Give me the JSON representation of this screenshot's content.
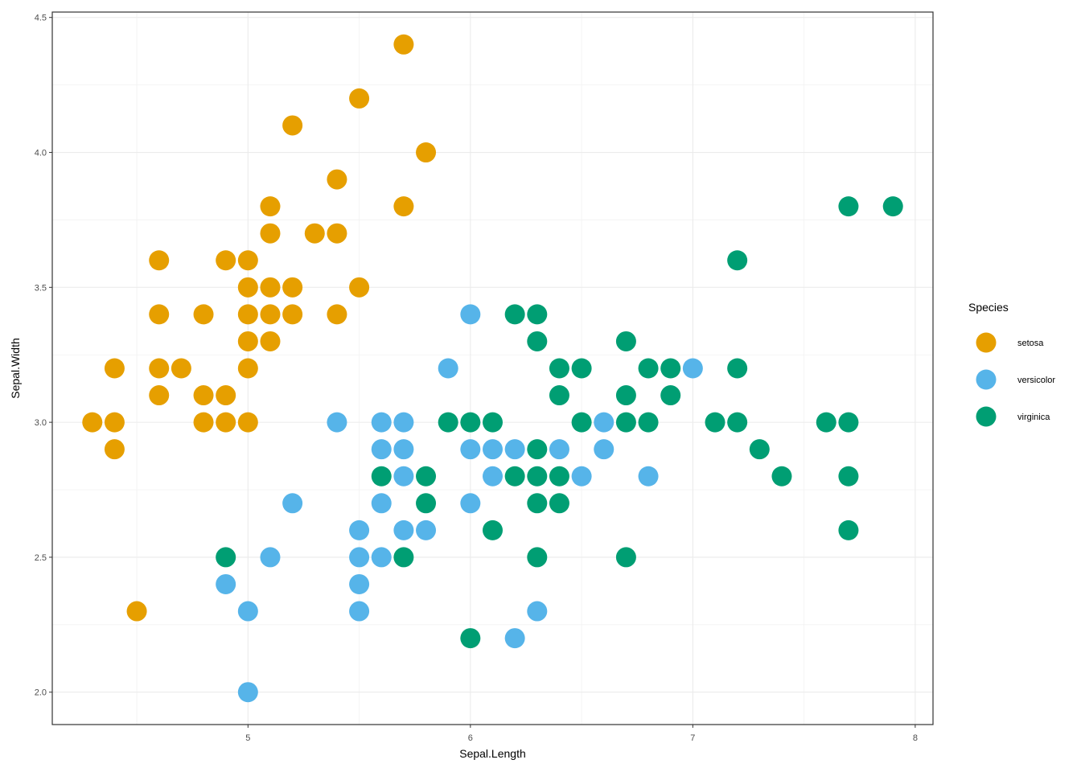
{
  "chart_data": {
    "type": "scatter",
    "title": "",
    "xlabel": "Sepal.Length",
    "ylabel": "Sepal.Width",
    "xlim": [
      4.12,
      8.08
    ],
    "ylim": [
      1.88,
      4.52
    ],
    "xticks": [
      5,
      6,
      7,
      8
    ],
    "xtick_labels": [
      "5",
      "6",
      "7",
      "8"
    ],
    "yticks": [
      2.0,
      2.5,
      3.0,
      3.5,
      4.0,
      4.5
    ],
    "ytick_labels": [
      "2.0",
      "2.5",
      "3.0",
      "3.5",
      "4.0",
      "4.5"
    ],
    "grid": true,
    "legend": {
      "title": "Species",
      "position": "right"
    },
    "series": [
      {
        "name": "setosa",
        "color": "#E69F00",
        "points": [
          [
            5.7,
            4.4
          ],
          [
            5.5,
            4.2
          ],
          [
            5.2,
            4.1
          ],
          [
            5.8,
            4.0
          ],
          [
            5.4,
            3.9
          ],
          [
            5.1,
            3.8
          ],
          [
            5.7,
            3.8
          ],
          [
            5.1,
            3.7
          ],
          [
            5.3,
            3.7
          ],
          [
            5.4,
            3.7
          ],
          [
            4.6,
            3.6
          ],
          [
            4.9,
            3.6
          ],
          [
            5.0,
            3.6
          ],
          [
            5.0,
            3.5
          ],
          [
            5.1,
            3.5
          ],
          [
            5.2,
            3.5
          ],
          [
            5.5,
            3.5
          ],
          [
            4.6,
            3.4
          ],
          [
            4.8,
            3.4
          ],
          [
            5.0,
            3.4
          ],
          [
            5.1,
            3.4
          ],
          [
            5.2,
            3.4
          ],
          [
            5.4,
            3.4
          ],
          [
            5.0,
            3.3
          ],
          [
            5.1,
            3.3
          ],
          [
            4.4,
            3.2
          ],
          [
            4.6,
            3.2
          ],
          [
            4.7,
            3.2
          ],
          [
            5.0,
            3.2
          ],
          [
            4.6,
            3.1
          ],
          [
            4.8,
            3.1
          ],
          [
            4.9,
            3.1
          ],
          [
            4.3,
            3.0
          ],
          [
            4.4,
            3.0
          ],
          [
            4.8,
            3.0
          ],
          [
            4.9,
            3.0
          ],
          [
            5.0,
            3.0
          ],
          [
            4.4,
            2.9
          ],
          [
            4.5,
            2.3
          ]
        ]
      },
      {
        "name": "versicolor",
        "color": "#56B4E9",
        "points": [
          [
            6.0,
            3.4
          ],
          [
            5.9,
            3.2
          ],
          [
            7.0,
            3.2
          ],
          [
            5.4,
            3.0
          ],
          [
            5.6,
            3.0
          ],
          [
            5.7,
            3.0
          ],
          [
            6.6,
            3.0
          ],
          [
            5.6,
            2.9
          ],
          [
            5.7,
            2.9
          ],
          [
            6.0,
            2.9
          ],
          [
            6.1,
            2.9
          ],
          [
            6.2,
            2.9
          ],
          [
            6.4,
            2.9
          ],
          [
            6.6,
            2.9
          ],
          [
            5.7,
            2.8
          ],
          [
            6.1,
            2.8
          ],
          [
            6.5,
            2.8
          ],
          [
            6.8,
            2.8
          ],
          [
            5.2,
            2.7
          ],
          [
            5.6,
            2.7
          ],
          [
            6.0,
            2.7
          ],
          [
            5.5,
            2.6
          ],
          [
            5.7,
            2.6
          ],
          [
            5.8,
            2.6
          ],
          [
            5.1,
            2.5
          ],
          [
            5.5,
            2.5
          ],
          [
            5.6,
            2.5
          ],
          [
            4.9,
            2.4
          ],
          [
            5.5,
            2.4
          ],
          [
            5.0,
            2.3
          ],
          [
            5.5,
            2.3
          ],
          [
            6.3,
            2.3
          ],
          [
            6.2,
            2.2
          ],
          [
            5.0,
            2.0
          ]
        ]
      },
      {
        "name": "virginica",
        "color": "#009E73",
        "points": [
          [
            7.7,
            3.8
          ],
          [
            7.9,
            3.8
          ],
          [
            7.2,
            3.6
          ],
          [
            6.2,
            3.4
          ],
          [
            6.3,
            3.4
          ],
          [
            6.3,
            3.3
          ],
          [
            6.7,
            3.3
          ],
          [
            6.4,
            3.2
          ],
          [
            6.5,
            3.2
          ],
          [
            6.8,
            3.2
          ],
          [
            6.9,
            3.2
          ],
          [
            7.2,
            3.2
          ],
          [
            6.4,
            3.1
          ],
          [
            6.7,
            3.1
          ],
          [
            6.9,
            3.1
          ],
          [
            5.9,
            3.0
          ],
          [
            6.0,
            3.0
          ],
          [
            6.1,
            3.0
          ],
          [
            6.5,
            3.0
          ],
          [
            6.7,
            3.0
          ],
          [
            6.8,
            3.0
          ],
          [
            7.1,
            3.0
          ],
          [
            7.2,
            3.0
          ],
          [
            7.6,
            3.0
          ],
          [
            7.7,
            3.0
          ],
          [
            6.3,
            2.9
          ],
          [
            7.3,
            2.9
          ],
          [
            5.6,
            2.8
          ],
          [
            5.8,
            2.8
          ],
          [
            6.2,
            2.8
          ],
          [
            6.3,
            2.8
          ],
          [
            6.4,
            2.8
          ],
          [
            7.4,
            2.8
          ],
          [
            7.7,
            2.8
          ],
          [
            5.8,
            2.7
          ],
          [
            6.3,
            2.7
          ],
          [
            6.4,
            2.7
          ],
          [
            6.1,
            2.6
          ],
          [
            7.7,
            2.6
          ],
          [
            4.9,
            2.5
          ],
          [
            5.7,
            2.5
          ],
          [
            6.3,
            2.5
          ],
          [
            6.7,
            2.5
          ],
          [
            6.0,
            2.2
          ]
        ]
      }
    ]
  }
}
